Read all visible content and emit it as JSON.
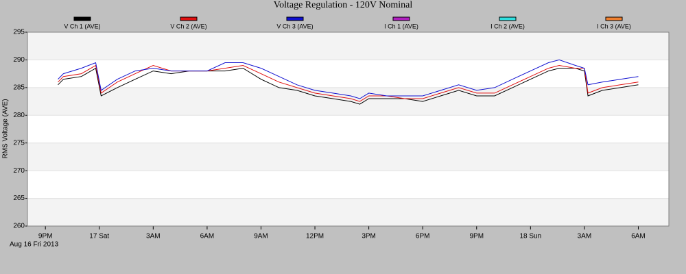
{
  "chart_data": {
    "type": "line",
    "title": "Voltage Regulation - 120V Nominal",
    "ylabel": "RMS Voltage (AVE)",
    "date_label": "Aug 16 Fri 2013",
    "x": [
      21.7,
      22,
      23,
      23.8,
      24.1,
      25,
      26,
      27,
      28,
      29,
      30,
      31,
      32,
      33,
      34,
      35,
      36,
      37,
      38,
      38.5,
      39,
      40,
      41,
      42,
      43,
      44,
      45,
      46,
      47,
      48,
      49,
      49.6,
      50.5,
      51,
      51.2,
      52,
      53,
      54
    ],
    "series": [
      {
        "name": "V Ch 1 (AVE)",
        "color": "#000000",
        "values": [
          285.5,
          286.5,
          287,
          288.5,
          283.5,
          285,
          286.5,
          288,
          287.5,
          288,
          288,
          288,
          288.5,
          286.5,
          285,
          284.5,
          283.5,
          283,
          282.5,
          282,
          283,
          283,
          283,
          282.5,
          283.5,
          284.5,
          283.5,
          283.5,
          285,
          286.5,
          288,
          288.5,
          288.5,
          288,
          283.5,
          284.5,
          285,
          285.5
        ]
      },
      {
        "name": "V Ch 2 (AVE)",
        "color": "#e01010",
        "values": [
          286,
          287,
          287.5,
          289,
          284,
          286,
          287.5,
          289,
          288,
          288,
          288,
          288.5,
          289,
          287.5,
          286,
          285,
          284,
          283.5,
          283,
          282.5,
          283.5,
          283.5,
          283,
          283,
          284,
          285,
          284,
          284,
          285.5,
          287,
          288.5,
          289,
          288.5,
          288.5,
          284,
          285,
          285.5,
          286
        ]
      },
      {
        "name": "V Ch 3 (AVE)",
        "color": "#1010d0",
        "values": [
          286.5,
          287.5,
          288.5,
          289.5,
          284.5,
          286.5,
          288,
          288.5,
          288,
          288,
          288,
          289.5,
          289.5,
          288.5,
          287,
          285.5,
          284.5,
          284,
          283.5,
          283,
          284,
          283.5,
          283.5,
          283.5,
          284.5,
          285.5,
          284.5,
          285,
          286.5,
          288,
          289.5,
          290,
          289,
          288.5,
          285.5,
          286,
          286.5,
          287
        ]
      }
    ],
    "legend_only": [
      {
        "name": "I Ch 1 (AVE)",
        "color": "#b020c0"
      },
      {
        "name": "I Ch 2 (AVE)",
        "color": "#30e0e0"
      },
      {
        "name": "I Ch 3 (AVE)",
        "color": "#f08030"
      }
    ],
    "xlim": [
      20,
      55.7
    ],
    "xticks": [
      {
        "value": 21,
        "label": "9PM"
      },
      {
        "value": 24,
        "label": "17 Sat"
      },
      {
        "value": 27,
        "label": "3AM"
      },
      {
        "value": 30,
        "label": "6AM"
      },
      {
        "value": 33,
        "label": "9AM"
      },
      {
        "value": 36,
        "label": "12PM"
      },
      {
        "value": 39,
        "label": "3PM"
      },
      {
        "value": 42,
        "label": "6PM"
      },
      {
        "value": 45,
        "label": "9PM"
      },
      {
        "value": 48,
        "label": "18 Sun"
      },
      {
        "value": 51,
        "label": "3AM"
      },
      {
        "value": 54,
        "label": "6AM"
      }
    ],
    "ylim": [
      260,
      295
    ],
    "yticks": [
      260,
      265,
      270,
      275,
      280,
      285,
      290,
      295
    ],
    "grid": true
  }
}
